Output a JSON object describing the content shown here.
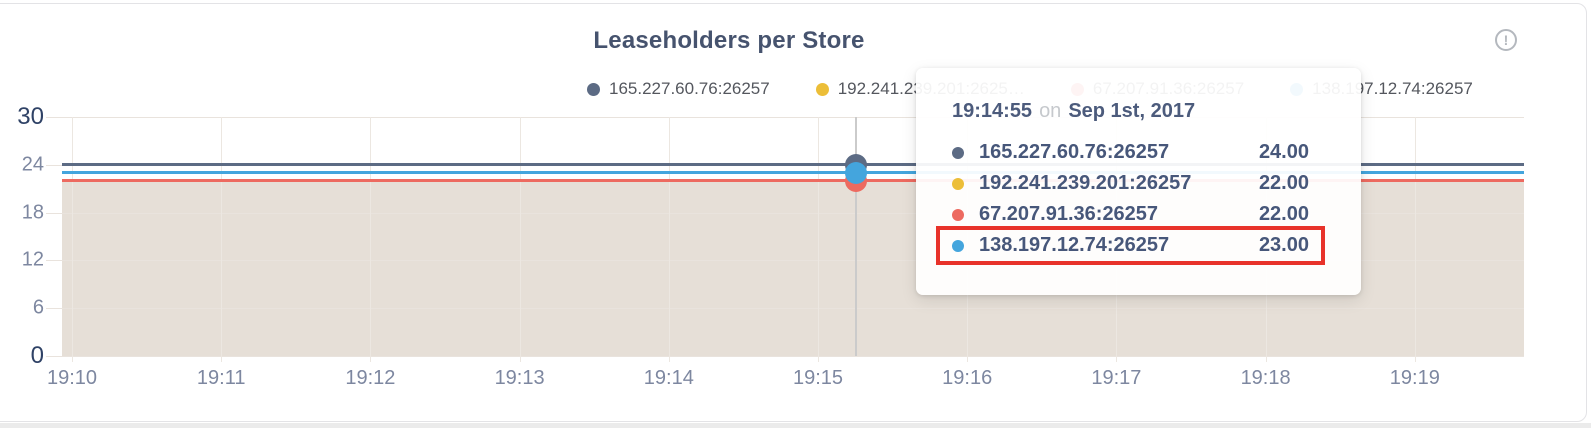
{
  "panel": {
    "title": "Leaseholders per Store",
    "info_icon_glyph": "!"
  },
  "legend": {
    "items": [
      {
        "label": "165.227.60.76:26257",
        "color": "#5c6b84"
      },
      {
        "label": "192.241.239.201:2625…",
        "color": "#ecbe38"
      },
      {
        "label": "67.207.91.36:26257",
        "color": "#ed6a60"
      },
      {
        "label": "138.197.12.74:26257",
        "color": "#44a5dd"
      }
    ]
  },
  "tooltip": {
    "time": "19:14:55",
    "conjunction": "on",
    "date": "Sep 1st, 2017",
    "highlight_color": "#e8322a",
    "rows": [
      {
        "label": "165.227.60.76:26257",
        "value": "24.00",
        "color": "#5c6b84",
        "highlighted": false
      },
      {
        "label": "192.241.239.201:26257",
        "value": "22.00",
        "color": "#ecbe38",
        "highlighted": false
      },
      {
        "label": "67.207.91.36:26257",
        "value": "22.00",
        "color": "#ed6a60",
        "highlighted": false
      },
      {
        "label": "138.197.12.74:26257",
        "value": "23.00",
        "color": "#44a5dd",
        "highlighted": true
      }
    ]
  },
  "chart_data": {
    "type": "area",
    "title": "Leaseholders per Store",
    "xlabel": "",
    "ylabel": "",
    "x_ticks": [
      "19:10",
      "19:11",
      "19:12",
      "19:13",
      "19:14",
      "19:15",
      "19:16",
      "19:17",
      "19:18",
      "19:19"
    ],
    "y_ticks": [
      30,
      24,
      18,
      12,
      6,
      0
    ],
    "ylim": [
      0,
      30
    ],
    "grid": true,
    "legend_position": "top",
    "area_fill_color": "#e6dfd7",
    "series": [
      {
        "name": "165.227.60.76:26257",
        "color": "#5c6b84",
        "values": [
          24,
          24,
          24,
          24,
          24,
          24,
          24,
          24,
          24,
          24
        ]
      },
      {
        "name": "192.241.239.201:26257",
        "color": "#ecbe38",
        "values": [
          22,
          22,
          22,
          22,
          22,
          22,
          22,
          22,
          22,
          22
        ]
      },
      {
        "name": "67.207.91.36:26257",
        "color": "#ed6a60",
        "values": [
          22,
          22,
          22,
          22,
          22,
          22,
          22,
          22,
          22,
          22
        ]
      },
      {
        "name": "138.197.12.74:26257",
        "color": "#44a5dd",
        "values": [
          23,
          23,
          23,
          23,
          23,
          23,
          23,
          23,
          23,
          23
        ]
      }
    ],
    "hover": {
      "time": "19:14:55",
      "x_frac": 0.543,
      "values": [
        {
          "name": "165.227.60.76:26257",
          "y": 24,
          "color": "#5c6b84"
        },
        {
          "name": "67.207.91.36:26257",
          "y": 22,
          "color": "#ed6a60"
        },
        {
          "name": "138.197.12.74:26257",
          "y": 23,
          "color": "#44a5dd"
        }
      ]
    }
  }
}
